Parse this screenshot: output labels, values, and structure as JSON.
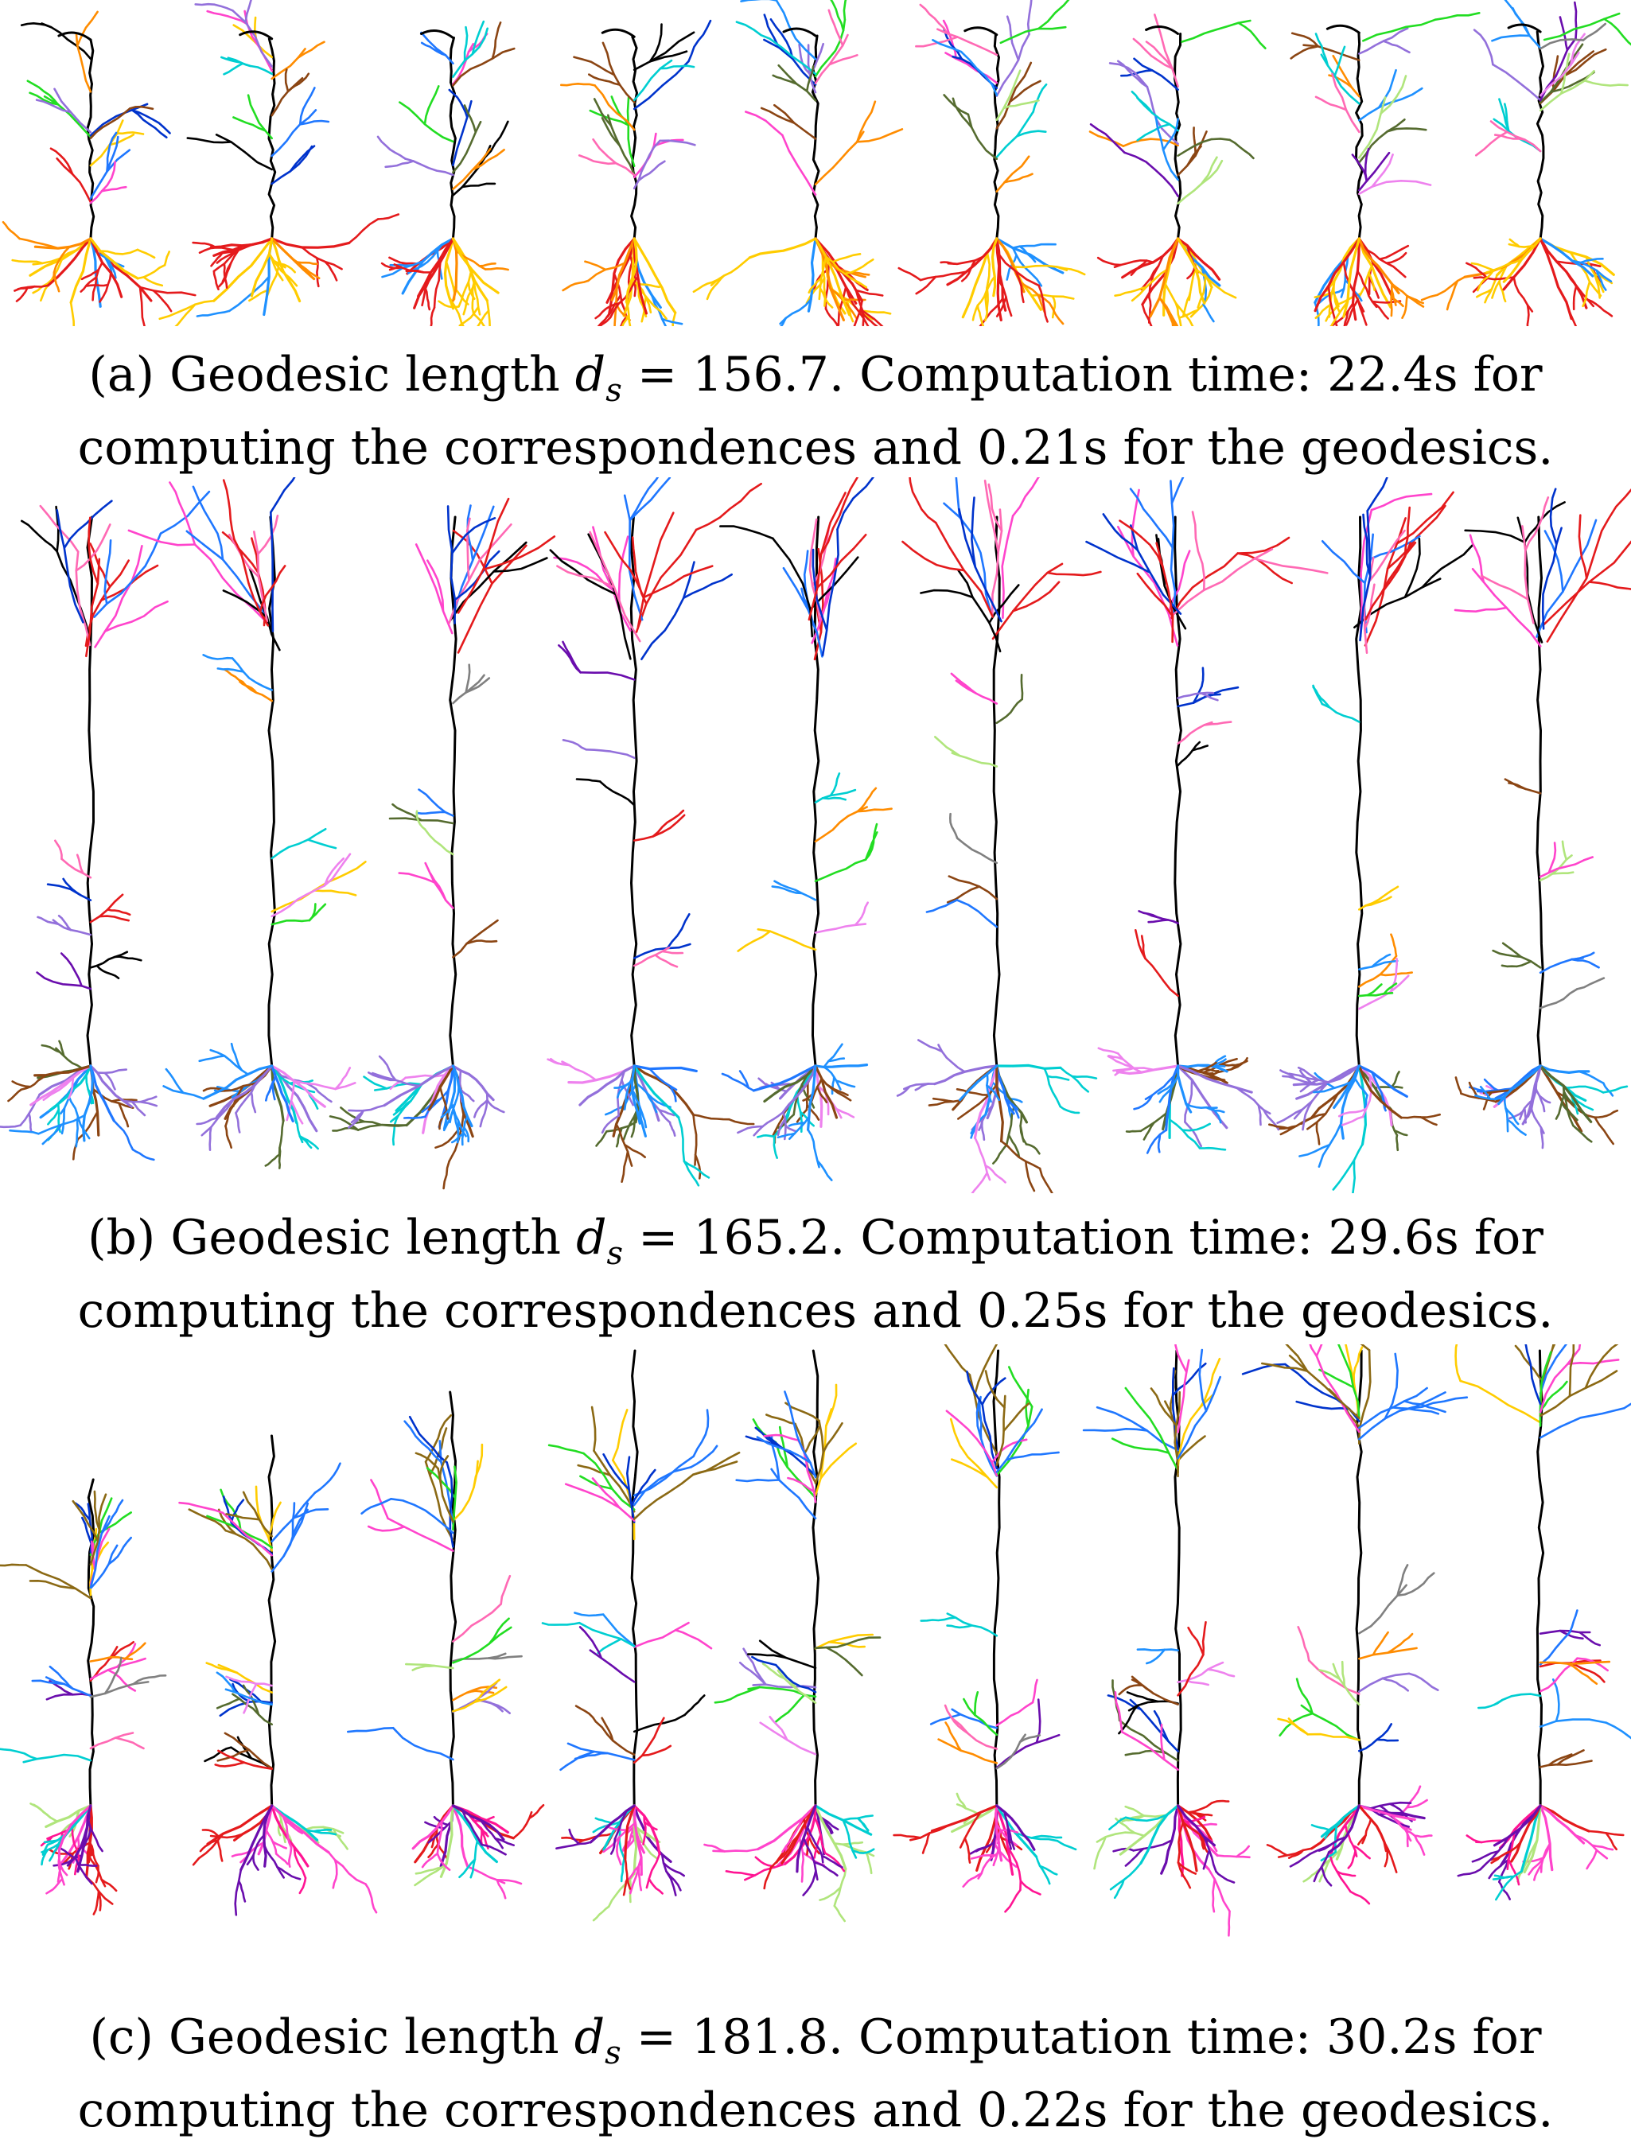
{
  "figure": {
    "panels": [
      {
        "id": "a",
        "label": "(a)",
        "caption_pre": "Geodesic length",
        "symbol": "d",
        "subscript": "s",
        "equals": "=",
        "length_value": "156.7",
        "caption_mid": ". Computation time:",
        "corr_time": "22.4s",
        "caption_line1_end": "for",
        "caption_line2_pre": "computing the correspondences and",
        "geo_time": "0.21s",
        "caption_line2_end": "for the geodesics.",
        "neuron_type": "compact",
        "frames": 9
      },
      {
        "id": "b",
        "label": "(b)",
        "caption_pre": "Geodesic length",
        "symbol": "d",
        "subscript": "s",
        "equals": "=",
        "length_value": "165.2",
        "caption_mid": ". Computation time:",
        "corr_time": "29.6s",
        "caption_line1_end": "for",
        "caption_line2_pre": "computing the correspondences and",
        "geo_time": "0.25s",
        "caption_line2_end": "for the geodesics.",
        "neuron_type": "tall",
        "frames": 9
      },
      {
        "id": "c",
        "label": "(c)",
        "caption_pre": "Geodesic length",
        "symbol": "d",
        "subscript": "s",
        "equals": "=",
        "length_value": "181.8",
        "caption_mid": ". Computation time:",
        "corr_time": "30.2s",
        "caption_line1_end": "for",
        "caption_line2_pre": "computing the correspondences and",
        "geo_time": "0.22s",
        "caption_line2_end": "for the geodesics.",
        "neuron_type": "growing",
        "frames": 9
      }
    ],
    "branch_colors": [
      "#e41a1c",
      "#ffcc00",
      "#1f77ff",
      "#000000",
      "#22dd22",
      "#ff44cc",
      "#0033cc",
      "#ff8c00",
      "#8b4513",
      "#9370db",
      "#00ced1",
      "#556b2f",
      "#ff69b4",
      "#1e90ff",
      "#b0e57c",
      "#6a0dad",
      "#ee82ee",
      "#808080"
    ]
  }
}
